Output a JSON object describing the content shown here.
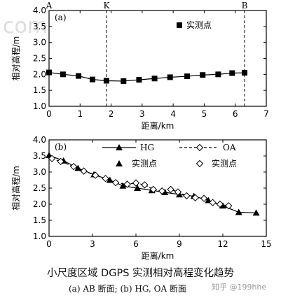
{
  "watermark_top": "com",
  "watermark_bottom": "知乎 @199hhe",
  "caption_title": "小尺度区域 DGPS 实测相对高程变化趋势",
  "caption_sub": "(a)    AB 断面; (b) HG, OA 断面",
  "chart_data": [
    {
      "type": "line",
      "panel_label": "(a)",
      "xlabel": "距离/km",
      "ylabel": "相对高程/m",
      "xlim": [
        0,
        7
      ],
      "ylim": [
        1.0,
        4.0
      ],
      "xticks": [
        0,
        1,
        2,
        3,
        4,
        5,
        6,
        7
      ],
      "yticks": [
        1.0,
        1.5,
        2.0,
        2.5,
        3.0,
        3.5,
        4.0
      ],
      "vlines": [
        {
          "x": 0,
          "label": "A",
          "style": "solid"
        },
        {
          "x": 1.85,
          "label": "K",
          "style": "dashed"
        },
        {
          "x": 6.3,
          "label": "B",
          "style": "dashed"
        }
      ],
      "legend": {
        "position": "top-right",
        "entries": [
          {
            "marker": "square",
            "label": "实测点"
          }
        ]
      },
      "series": [
        {
          "name": "实测点",
          "marker": "square",
          "line": "solid",
          "x": [
            0,
            0.45,
            0.95,
            1.4,
            1.85,
            2.4,
            2.9,
            3.4,
            3.9,
            4.45,
            4.95,
            5.45,
            5.9,
            6.3
          ],
          "y": [
            2.06,
            2.0,
            1.95,
            1.84,
            1.8,
            1.79,
            1.83,
            1.87,
            1.91,
            1.94,
            1.98,
            2.0,
            2.04,
            2.05
          ]
        }
      ]
    },
    {
      "type": "line",
      "panel_label": "(b)",
      "xlabel": "距离/km",
      "ylabel": "相对高程/m",
      "xlim": [
        0,
        15
      ],
      "ylim": [
        1.0,
        4.0
      ],
      "xticks": [
        0,
        3,
        6,
        9,
        12,
        15
      ],
      "xtick_labels": [
        "0",
        "3",
        "6",
        "9",
        "12",
        "15"
      ],
      "yticks": [
        1.0,
        1.5,
        2.0,
        2.5,
        3.0,
        3.5,
        4.0
      ],
      "legend": {
        "position": "top-right",
        "entries": [
          {
            "label": "HG",
            "style": "solid-triangle"
          },
          {
            "label": "OA",
            "style": "dashed-diamond"
          },
          {
            "label": "实测点",
            "marker": "triangle"
          },
          {
            "label": "实测点",
            "marker": "diamond"
          }
        ]
      },
      "series": [
        {
          "name": "HG",
          "marker": "triangle",
          "line": "solid",
          "x": [
            0,
            1.0,
            2.0,
            3.1,
            4.2,
            5.1,
            6.1,
            7.1,
            8.0,
            9.0,
            10.0,
            11.0,
            12.0,
            13.1,
            14.3
          ],
          "y": [
            3.52,
            3.35,
            3.12,
            2.92,
            2.75,
            2.57,
            2.5,
            2.43,
            2.37,
            2.3,
            2.25,
            2.12,
            1.95,
            1.75,
            1.73
          ]
        },
        {
          "name": "OA",
          "marker": "diamond",
          "line": "dashed",
          "x": [
            0.2,
            0.8,
            1.7,
            2.4,
            3.2,
            3.9,
            4.6,
            5.4,
            6.0,
            6.6,
            7.2,
            7.8,
            8.4,
            8.9,
            9.5,
            10.1,
            10.7,
            11.3,
            11.8,
            12.4
          ],
          "y": [
            3.42,
            3.33,
            3.17,
            3.03,
            2.9,
            2.8,
            2.67,
            2.62,
            2.66,
            2.6,
            2.46,
            2.41,
            2.46,
            2.38,
            2.26,
            2.2,
            2.18,
            2.05,
            2.0,
            1.95
          ]
        }
      ]
    }
  ]
}
